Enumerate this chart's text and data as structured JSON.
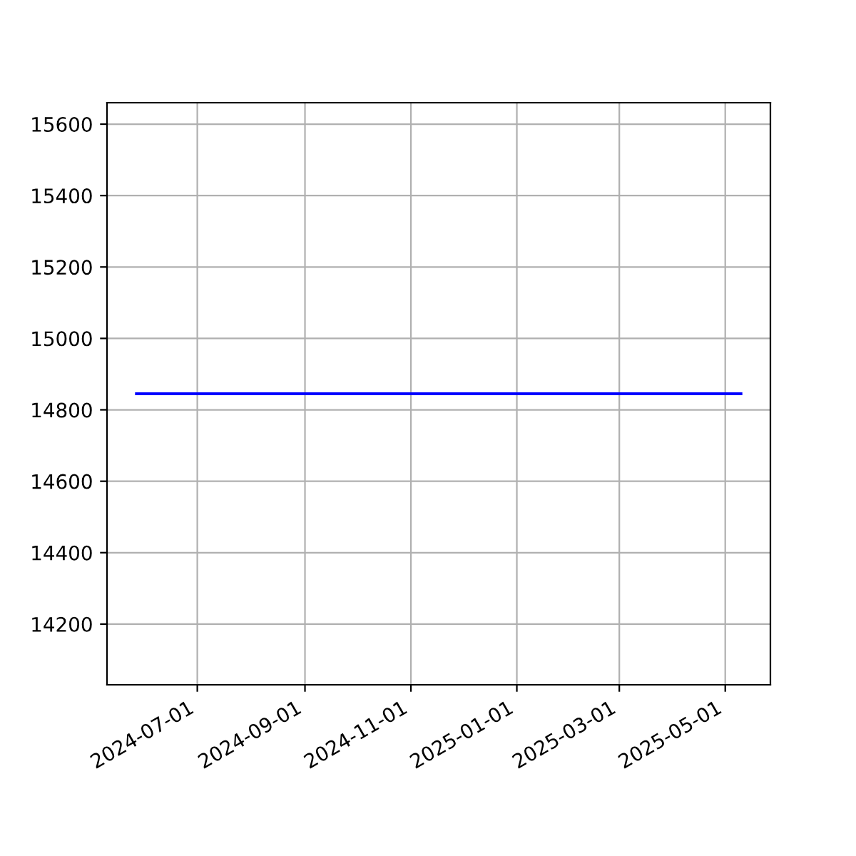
{
  "chart_data": {
    "type": "line",
    "x": [
      "2024-05-27",
      "2025-05-10"
    ],
    "series": [
      {
        "color": "#0000ff",
        "values": [
          14845,
          14845
        ]
      }
    ],
    "xlim": [
      "2024-05-10",
      "2025-05-27"
    ],
    "xticks": [
      {
        "value": "2024-07-01",
        "label": "2024-07-01"
      },
      {
        "value": "2024-09-01",
        "label": "2024-09-01"
      },
      {
        "value": "2024-11-01",
        "label": "2024-11-01"
      },
      {
        "value": "2025-01-01",
        "label": "2025-01-01"
      },
      {
        "value": "2025-03-01",
        "label": "2025-03-01"
      },
      {
        "value": "2025-05-01",
        "label": "2025-05-01"
      }
    ],
    "ylim": [
      14030,
      15660
    ],
    "yticks": [
      14200,
      14400,
      14600,
      14800,
      15000,
      15200,
      15400,
      15600
    ],
    "grid": true
  }
}
